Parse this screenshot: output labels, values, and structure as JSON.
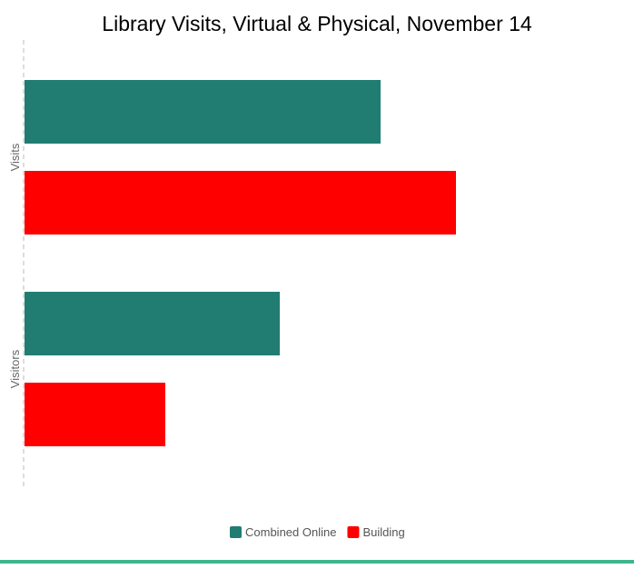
{
  "chart_data": {
    "type": "bar",
    "orientation": "horizontal",
    "title": "Library Visits, Virtual & Physical, November 14",
    "categories": [
      "Visits",
      "Visitors"
    ],
    "series": [
      {
        "name": "Combined Online",
        "color": "#217d72",
        "values": [
          392,
          281
        ]
      },
      {
        "name": "Building",
        "color": "#ff0000",
        "values": [
          475,
          155
        ]
      }
    ],
    "xlim": [
      0,
      670
    ],
    "x_axis_visible": false,
    "grid": false,
    "legend_position": "bottom-center"
  },
  "colors": {
    "axis_line": "#bbbbbb",
    "bottom_rule": "#3fb58f"
  }
}
